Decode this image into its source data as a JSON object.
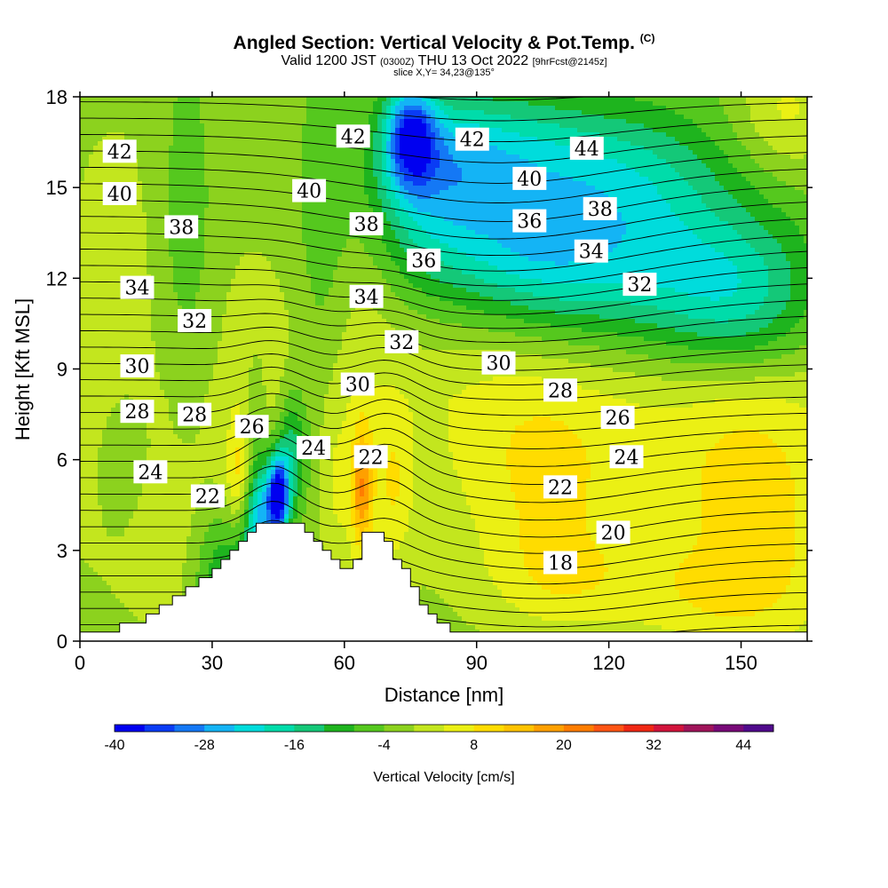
{
  "header": {
    "title": "Angled Section: Vertical Velocity & Pot.Temp.",
    "copyright": "(C)",
    "valid_prefix": "Valid 1200 JST",
    "utc_time": "(0300Z)",
    "valid_date": "THU 13 Oct 2022",
    "forecast": "[9hrFcst@2145z]",
    "slice": "slice X,Y= 34,23@135°"
  },
  "chart_data": {
    "type": "contour-section",
    "title": "Angled Section: Vertical Velocity & Pot.Temp.",
    "xlabel": "Distance [nm]",
    "ylabel": "Height [Kft MSL]",
    "xlim": [
      0,
      165
    ],
    "ylim": [
      0,
      18
    ],
    "xticks": [
      0,
      30,
      60,
      90,
      120,
      150
    ],
    "yticks": [
      0,
      3,
      6,
      9,
      12,
      15,
      18
    ],
    "grid": false,
    "colorbar": {
      "label": "Vertical Velocity [cm/s]",
      "min": -40,
      "step": 4,
      "tick_labels": [
        -40,
        -28,
        -16,
        -4,
        8,
        20,
        32,
        44
      ],
      "colors": [
        "#0000f0",
        "#0a3cf5",
        "#1478f5",
        "#14b4f5",
        "#00dcdc",
        "#00dcaa",
        "#14c878",
        "#1eb41e",
        "#55c81e",
        "#8cd21e",
        "#c3e61e",
        "#ebf014",
        "#ffdc00",
        "#ffc300",
        "#ffa000",
        "#ff7d00",
        "#ff5514",
        "#f02814",
        "#d2143c",
        "#a0145a",
        "#780a78",
        "#500a8c"
      ]
    },
    "potential_temperature_labels": [
      {
        "value": 42,
        "x": 9,
        "y": 16.2
      },
      {
        "value": 40,
        "x": 9,
        "y": 14.8
      },
      {
        "value": 38,
        "x": 23,
        "y": 13.7
      },
      {
        "value": 34,
        "x": 13,
        "y": 11.7
      },
      {
        "value": 32,
        "x": 26,
        "y": 10.6
      },
      {
        "value": 30,
        "x": 13,
        "y": 9.1
      },
      {
        "value": 28,
        "x": 13,
        "y": 7.6
      },
      {
        "value": 28,
        "x": 26,
        "y": 7.5
      },
      {
        "value": 26,
        "x": 39,
        "y": 7.1
      },
      {
        "value": 24,
        "x": 16,
        "y": 5.6
      },
      {
        "value": 22,
        "x": 29,
        "y": 4.8
      },
      {
        "value": 42,
        "x": 62,
        "y": 16.7
      },
      {
        "value": 40,
        "x": 52,
        "y": 14.9
      },
      {
        "value": 38,
        "x": 65,
        "y": 13.8
      },
      {
        "value": 36,
        "x": 78,
        "y": 12.6
      },
      {
        "value": 34,
        "x": 65,
        "y": 11.4
      },
      {
        "value": 32,
        "x": 73,
        "y": 9.9
      },
      {
        "value": 30,
        "x": 63,
        "y": 8.5
      },
      {
        "value": 24,
        "x": 53,
        "y": 6.4
      },
      {
        "value": 22,
        "x": 66,
        "y": 6.1
      },
      {
        "value": 42,
        "x": 89,
        "y": 16.6
      },
      {
        "value": 40,
        "x": 102,
        "y": 15.3
      },
      {
        "value": 36,
        "x": 102,
        "y": 13.9
      },
      {
        "value": 30,
        "x": 95,
        "y": 9.2
      },
      {
        "value": 28,
        "x": 109,
        "y": 8.3
      },
      {
        "value": 22,
        "x": 109,
        "y": 5.1
      },
      {
        "value": 18,
        "x": 109,
        "y": 2.6
      },
      {
        "value": 44,
        "x": 115,
        "y": 16.3
      },
      {
        "value": 38,
        "x": 118,
        "y": 14.3
      },
      {
        "value": 34,
        "x": 116,
        "y": 12.9
      },
      {
        "value": 32,
        "x": 127,
        "y": 11.8
      },
      {
        "value": 26,
        "x": 122,
        "y": 7.4
      },
      {
        "value": 24,
        "x": 124,
        "y": 6.1
      },
      {
        "value": 20,
        "x": 121,
        "y": 3.6
      }
    ],
    "terrain_profile": [
      [
        0,
        0.3
      ],
      [
        9,
        0.3
      ],
      [
        9,
        0.6
      ],
      [
        15,
        0.6
      ],
      [
        15,
        0.9
      ],
      [
        18,
        0.9
      ],
      [
        18,
        1.2
      ],
      [
        21,
        1.2
      ],
      [
        21,
        1.5
      ],
      [
        24,
        1.5
      ],
      [
        24,
        1.8
      ],
      [
        27,
        1.8
      ],
      [
        27,
        2.1
      ],
      [
        30,
        2.1
      ],
      [
        30,
        2.4
      ],
      [
        32,
        2.4
      ],
      [
        32,
        2.7
      ],
      [
        34,
        2.7
      ],
      [
        34,
        3.0
      ],
      [
        36,
        3.0
      ],
      [
        36,
        3.3
      ],
      [
        38,
        3.3
      ],
      [
        38,
        3.6
      ],
      [
        40,
        3.6
      ],
      [
        40,
        3.9
      ],
      [
        51,
        3.9
      ],
      [
        51,
        3.6
      ],
      [
        53,
        3.6
      ],
      [
        53,
        3.3
      ],
      [
        55,
        3.3
      ],
      [
        55,
        3.0
      ],
      [
        57,
        3.0
      ],
      [
        57,
        2.7
      ],
      [
        59,
        2.7
      ],
      [
        59,
        2.4
      ],
      [
        62,
        2.4
      ],
      [
        62,
        2.7
      ],
      [
        64,
        2.7
      ],
      [
        64,
        3.6
      ],
      [
        69,
        3.6
      ],
      [
        69,
        3.3
      ],
      [
        71,
        3.3
      ],
      [
        71,
        2.7
      ],
      [
        73,
        2.7
      ],
      [
        73,
        2.4
      ],
      [
        75,
        2.4
      ],
      [
        75,
        1.8
      ],
      [
        77,
        1.8
      ],
      [
        77,
        1.2
      ],
      [
        79,
        1.2
      ],
      [
        79,
        0.9
      ],
      [
        81,
        0.9
      ],
      [
        81,
        0.6
      ],
      [
        84,
        0.6
      ],
      [
        84,
        0.3
      ],
      [
        165,
        0.3
      ]
    ]
  }
}
